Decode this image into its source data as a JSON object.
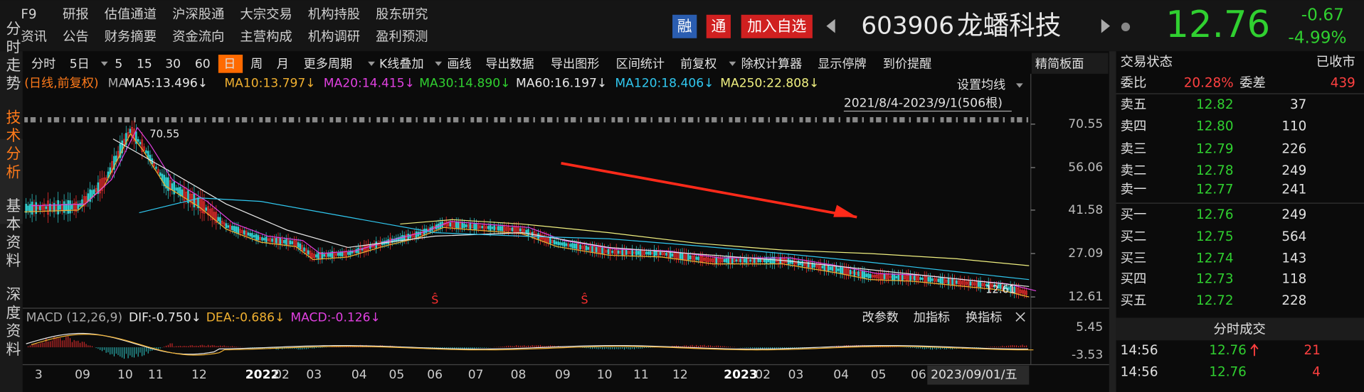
{
  "menu": {
    "row1": [
      "F9",
      "研报",
      "估值通道",
      "沪深股通",
      "大宗交易",
      "机构持股",
      "股东研究"
    ],
    "row2": [
      "资讯",
      "公告",
      "财务摘要",
      "资金流向",
      "主营构成",
      "机构调研",
      "盈利预测"
    ]
  },
  "badges": [
    "融",
    "通"
  ],
  "watch_button": "加入自选",
  "stock": {
    "code": "603906",
    "name": "龙蟠科技",
    "price": "12.76",
    "change": "-0.67",
    "change_pct": "-4.99%"
  },
  "side_tabs": [
    "分时走势",
    "技术分析",
    "基本资料",
    "深度资料"
  ],
  "toolbar": [
    "分时",
    "5日",
    "5",
    "15",
    "30",
    "60",
    "日",
    "周",
    "月",
    "更多周期",
    "K线叠加",
    "画线",
    "导出数据",
    "导出图形",
    "区间统计",
    "前复权",
    "除权计算器",
    "显示停牌",
    "到价提醒"
  ],
  "panel_button": "精简板面",
  "ma_legend": {
    "mode": "(日线,前复权)",
    "label": "MA",
    "items": [
      {
        "text": "MA5:13.496↓",
        "color": "#e8e8e8"
      },
      {
        "text": "MA10:13.797↓",
        "color": "#f0b030"
      },
      {
        "text": "MA20:14.415↓",
        "color": "#e040e0"
      },
      {
        "text": "MA30:14.890↓",
        "color": "#30d030"
      },
      {
        "text": "MA60:16.197↓",
        "color": "#e8e8e8"
      },
      {
        "text": "MA120:18.406↓",
        "color": "#30c8f0"
      },
      {
        "text": "MA250:22.808↓",
        "color": "#f0f080"
      }
    ]
  },
  "ma_settings": "设置均线",
  "range": "2021/8/4-2023/9/1(506根)",
  "price_axis": [
    "70.55",
    "56.06",
    "41.58",
    "27.09",
    "12.61"
  ],
  "annotations": {
    "high": "70.55",
    "last": "12.61"
  },
  "macd": {
    "label": "MACD (12,26,9)",
    "items": [
      {
        "text": "DIF:-0.750↓",
        "color": "#e8e8e8"
      },
      {
        "text": "DEA:-0.686↓",
        "color": "#f0b030"
      },
      {
        "text": "MACD:-0.126↓",
        "color": "#e040e0"
      }
    ],
    "buttons": [
      "改参数",
      "加指标",
      "换指标"
    ],
    "axis": [
      "5.45",
      "-3.53"
    ]
  },
  "time_axis": [
    "3",
    "09",
    "10",
    "11",
    "12",
    "2022",
    "02",
    "03",
    "04",
    "05",
    "06",
    "07",
    "08",
    "09",
    "10",
    "11",
    "12",
    "2023",
    "02",
    "03",
    "04",
    "05",
    "06"
  ],
  "cursor_date": "2023/09/01/五",
  "order_book": {
    "status_label": "交易状态",
    "status": "已收市",
    "ratio_label": "委比",
    "ratio": "20.28%",
    "diff_label": "委差",
    "diff": "439",
    "asks": [
      {
        "label": "卖五",
        "price": "12.82",
        "volume": "37"
      },
      {
        "label": "卖四",
        "price": "12.80",
        "volume": "110"
      },
      {
        "label": "卖三",
        "price": "12.79",
        "volume": "226"
      },
      {
        "label": "卖二",
        "price": "12.78",
        "volume": "249"
      },
      {
        "label": "卖一",
        "price": "12.77",
        "volume": "241"
      }
    ],
    "bids": [
      {
        "label": "买一",
        "price": "12.76",
        "volume": "249"
      },
      {
        "label": "买二",
        "price": "12.75",
        "volume": "564"
      },
      {
        "label": "买三",
        "price": "12.74",
        "volume": "143"
      },
      {
        "label": "买四",
        "price": "12.73",
        "volume": "118"
      },
      {
        "label": "买五",
        "price": "12.72",
        "volume": "228"
      }
    ]
  },
  "trades": {
    "title": "分时成交",
    "rows": [
      {
        "time": "14:56",
        "price": "12.76",
        "volume": "21"
      },
      {
        "time": "14:56",
        "price": "12.76",
        "volume": "4"
      }
    ]
  }
}
